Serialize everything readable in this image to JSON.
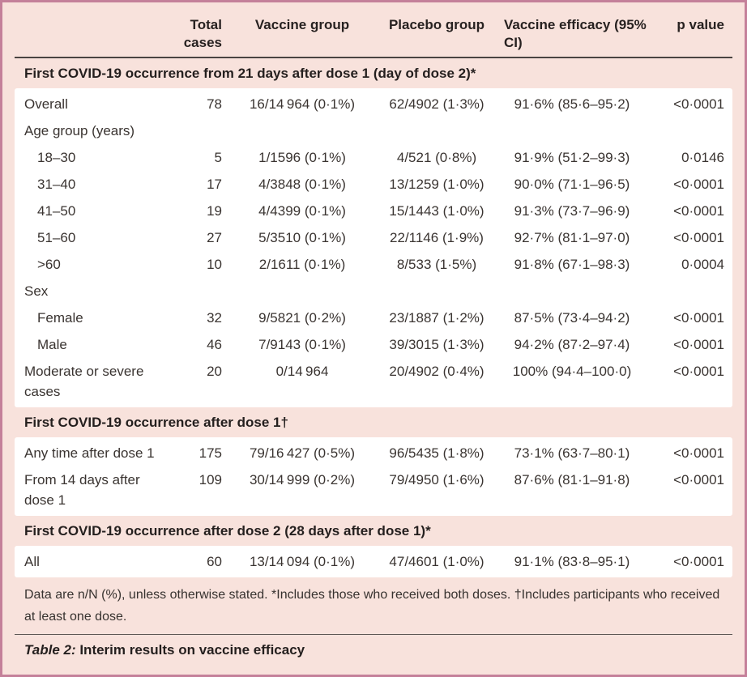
{
  "colors": {
    "page_background": "#f8e2dc",
    "row_background": "#ffffff",
    "frame_border": "#c4809a",
    "header_rule": "#4a4441",
    "caption_rule": "#5f5855",
    "body_text": "#3a3431",
    "heading_text": "#241f1e"
  },
  "columns": {
    "total": "Total cases",
    "vaccine": "Vaccine group",
    "placebo": "Placebo group",
    "efficacy": "Vaccine efficacy (95% CI)",
    "p": "p value"
  },
  "sections": [
    {
      "title": "First COVID-19 occurrence from 21 days after dose 1 (day of dose 2)*",
      "rows": [
        {
          "label": "Overall",
          "total": "78",
          "vaccine": "16/14 964 (0·1%)",
          "placebo": "62/4902 (1·3%)",
          "efficacy": "91·6% (85·6–95·2)",
          "p": "<0·0001"
        },
        {
          "label": "Age group (years)"
        },
        {
          "label": "18–30",
          "total": "5",
          "vaccine": "1/1596 (0·1%)",
          "placebo": "4/521 (0·8%)",
          "efficacy": "91·9% (51·2–99·3)",
          "p": "0·0146"
        },
        {
          "label": "31–40",
          "total": "17",
          "vaccine": "4/3848 (0·1%)",
          "placebo": "13/1259 (1·0%)",
          "efficacy": "90·0% (71·1–96·5)",
          "p": "<0·0001"
        },
        {
          "label": "41–50",
          "total": "19",
          "vaccine": "4/4399 (0·1%)",
          "placebo": "15/1443 (1·0%)",
          "efficacy": "91·3% (73·7–96·9)",
          "p": "<0·0001"
        },
        {
          "label": "51–60",
          "total": "27",
          "vaccine": "5/3510 (0·1%)",
          "placebo": "22/1146 (1·9%)",
          "efficacy": "92·7% (81·1–97·0)",
          "p": "<0·0001"
        },
        {
          "label": ">60",
          "total": "10",
          "vaccine": "2/1611 (0·1%)",
          "placebo": "8/533 (1·5%)",
          "efficacy": "91·8% (67·1–98·3)",
          "p": "0·0004"
        },
        {
          "label": "Sex"
        },
        {
          "label": "Female",
          "total": "32",
          "vaccine": "9/5821 (0·2%)",
          "placebo": "23/1887 (1·2%)",
          "efficacy": "87·5% (73·4–94·2)",
          "p": "<0·0001"
        },
        {
          "label": "Male",
          "total": "46",
          "vaccine": "7/9143 (0·1%)",
          "placebo": "39/3015 (1·3%)",
          "efficacy": "94·2% (87·2–97·4)",
          "p": "<0·0001"
        },
        {
          "label": "Moderate or severe cases",
          "total": "20",
          "vaccine": "0/14 964",
          "placebo": "20/4902 (0·4%)",
          "efficacy": "100% (94·4–100·0)",
          "p": "<0·0001"
        }
      ]
    },
    {
      "title": "First COVID-19 occurrence after dose 1†",
      "rows": [
        {
          "label": "Any time after dose 1",
          "total": "175",
          "vaccine": "79/16 427 (0·5%)",
          "placebo": "96/5435 (1·8%)",
          "efficacy": "73·1% (63·7–80·1)",
          "p": "<0·0001"
        },
        {
          "label": "From 14 days after dose 1",
          "total": "109",
          "vaccine": "30/14 999 (0·2%)",
          "placebo": "79/4950 (1·6%)",
          "efficacy": "87·6% (81·1–91·8)",
          "p": "<0·0001"
        }
      ]
    },
    {
      "title": "First COVID-19 occurrence after dose 2 (28 days after dose 1)*",
      "rows": [
        {
          "label": "All",
          "total": "60",
          "vaccine": "13/14 094 (0·1%)",
          "placebo": "47/4601 (1·0%)",
          "efficacy": "91·1% (83·8–95·1)",
          "p": "<0·0001"
        }
      ]
    }
  ],
  "footnote": "Data are n/N (%), unless otherwise stated. *Includes those who received both doses. †Includes participants who received at least one dose.",
  "caption": {
    "prefix": "Table 2:",
    "rest": " Interim results on vaccine efficacy"
  }
}
